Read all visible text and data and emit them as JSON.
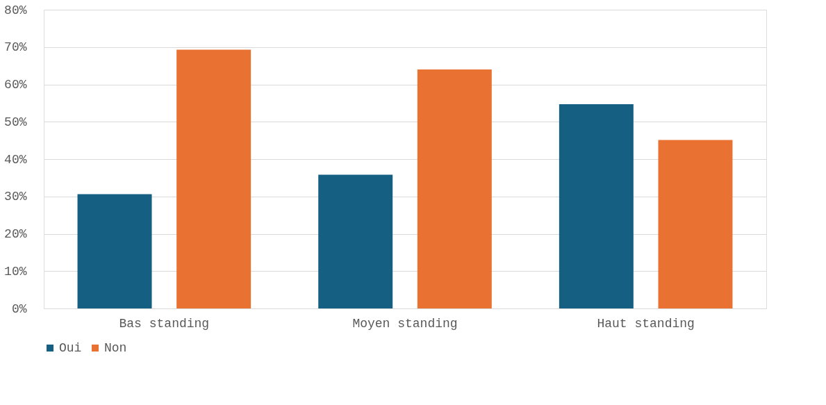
{
  "chart_data": {
    "type": "bar",
    "categories": [
      "Bas standing",
      "Moyen standing",
      "Haut standing"
    ],
    "series": [
      {
        "name": "Oui",
        "color": "#155f82",
        "values": [
          30.6,
          35.8,
          54.7
        ]
      },
      {
        "name": "Non",
        "color": "#e97132",
        "values": [
          69.3,
          64.0,
          45.1
        ]
      }
    ],
    "ylim": [
      0,
      80
    ],
    "yticks": [
      {
        "value": 0,
        "label": "0%"
      },
      {
        "value": 10,
        "label": "10%"
      },
      {
        "value": 20,
        "label": "20%"
      },
      {
        "value": 30,
        "label": "30%"
      },
      {
        "value": 40,
        "label": "40%"
      },
      {
        "value": 50,
        "label": "50%"
      },
      {
        "value": 60,
        "label": "60%"
      },
      {
        "value": 70,
        "label": "70%"
      },
      {
        "value": 80,
        "label": "80%"
      }
    ],
    "grid": "y",
    "legend": "bottom"
  }
}
